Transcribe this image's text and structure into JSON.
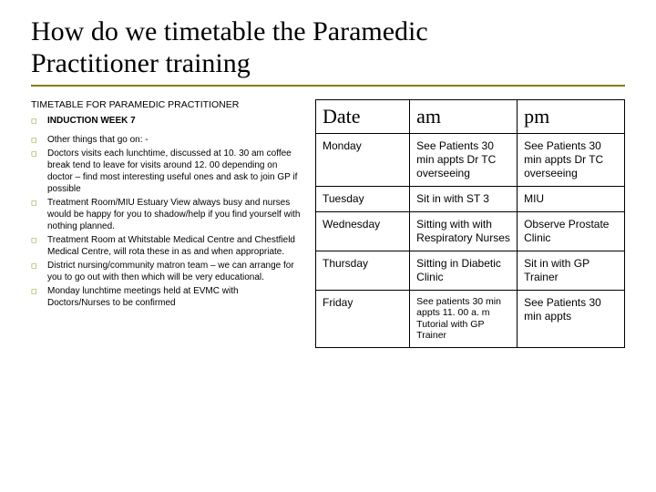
{
  "title_line1": "How do we timetable the Paramedic",
  "title_line2": "Practitioner training",
  "left": {
    "header": "TIMETABLE FOR PARAMEDIC PRACTITIONER",
    "subheader": "INDUCTION WEEK 7",
    "bullets": [
      "Other things that go on: -",
      "Doctors visits each lunchtime, discussed at 10. 30 am coffee break tend to leave for visits around 12. 00 depending on doctor – find most interesting useful ones and ask to join GP if possible",
      "Treatment Room/MIU Estuary View always busy and nurses would be happy for you to shadow/help if you find yourself with nothing planned.",
      "Treatment Room at Whitstable Medical Centre and Chestfield Medical Centre, will rota these in as and when appropriate.",
      "District nursing/community matron team – we can arrange for you to go out with then which will be very educational.",
      "Monday lunchtime meetings held at EVMC with Doctors/Nurses to be confirmed"
    ]
  },
  "table": {
    "headers": {
      "c0": "Date",
      "c1": "am",
      "c2": "pm"
    },
    "rows": [
      {
        "date": "Monday",
        "am": "See Patients 30 min appts Dr TC overseeing",
        "pm": "See Patients 30 min appts Dr TC overseeing",
        "am_sm": false,
        "pm_sm": false
      },
      {
        "date": "Tuesday",
        "am": "Sit in with ST 3",
        "pm": "MIU",
        "am_sm": false,
        "pm_sm": false
      },
      {
        "date": "Wednesday",
        "am": "Sitting with with Respiratory Nurses",
        "pm": "Observe Prostate Clinic",
        "am_sm": false,
        "pm_sm": false
      },
      {
        "date": "Thursday",
        "am": "Sitting in Diabetic Clinic",
        "pm": "Sit in with GP Trainer",
        "am_sm": false,
        "pm_sm": false
      },
      {
        "date": "Friday",
        "am": "See patients 30 min appts 11. 00 a. m Tutorial with GP Trainer",
        "pm": "See Patients 30 min appts",
        "am_sm": true,
        "pm_sm": false
      }
    ]
  },
  "colors": {
    "accent": "#808000",
    "border": "#000000",
    "bg": "#ffffff"
  }
}
